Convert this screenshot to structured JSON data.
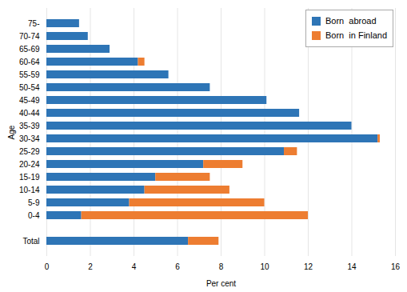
{
  "chart_data": {
    "type": "bar",
    "orientation": "horizontal",
    "stacked": true,
    "xlabel": "Per cent",
    "ylabel": "Age",
    "categories": [
      "Total",
      null,
      "0-4",
      "5-9",
      "10-14",
      "15-19",
      "20-24",
      "25-29",
      "30-34",
      "35-39",
      "40-44",
      "45-49",
      "50-54",
      "55-59",
      "60-64",
      "65-69",
      "70-74",
      "75-"
    ],
    "series": [
      {
        "name": "Born  abroad",
        "color": "#2E75B6",
        "values": [
          6.5,
          0,
          1.6,
          3.8,
          4.5,
          5.0,
          7.2,
          10.9,
          15.2,
          14.0,
          11.6,
          10.1,
          7.5,
          5.6,
          4.2,
          2.9,
          1.9,
          1.5
        ]
      },
      {
        "name": "Born  in Finland",
        "color": "#ED7D31",
        "values": [
          1.4,
          0,
          10.4,
          6.2,
          3.9,
          2.5,
          1.8,
          0.6,
          0.1,
          0.0,
          0.0,
          0.0,
          0.0,
          0.0,
          0.3,
          0.0,
          0.0,
          0.0
        ]
      }
    ],
    "xlim": [
      0,
      16
    ],
    "xticks": [
      0,
      2,
      4,
      6,
      8,
      10,
      12,
      14,
      16
    ],
    "grid": true,
    "legend": "upper right"
  }
}
